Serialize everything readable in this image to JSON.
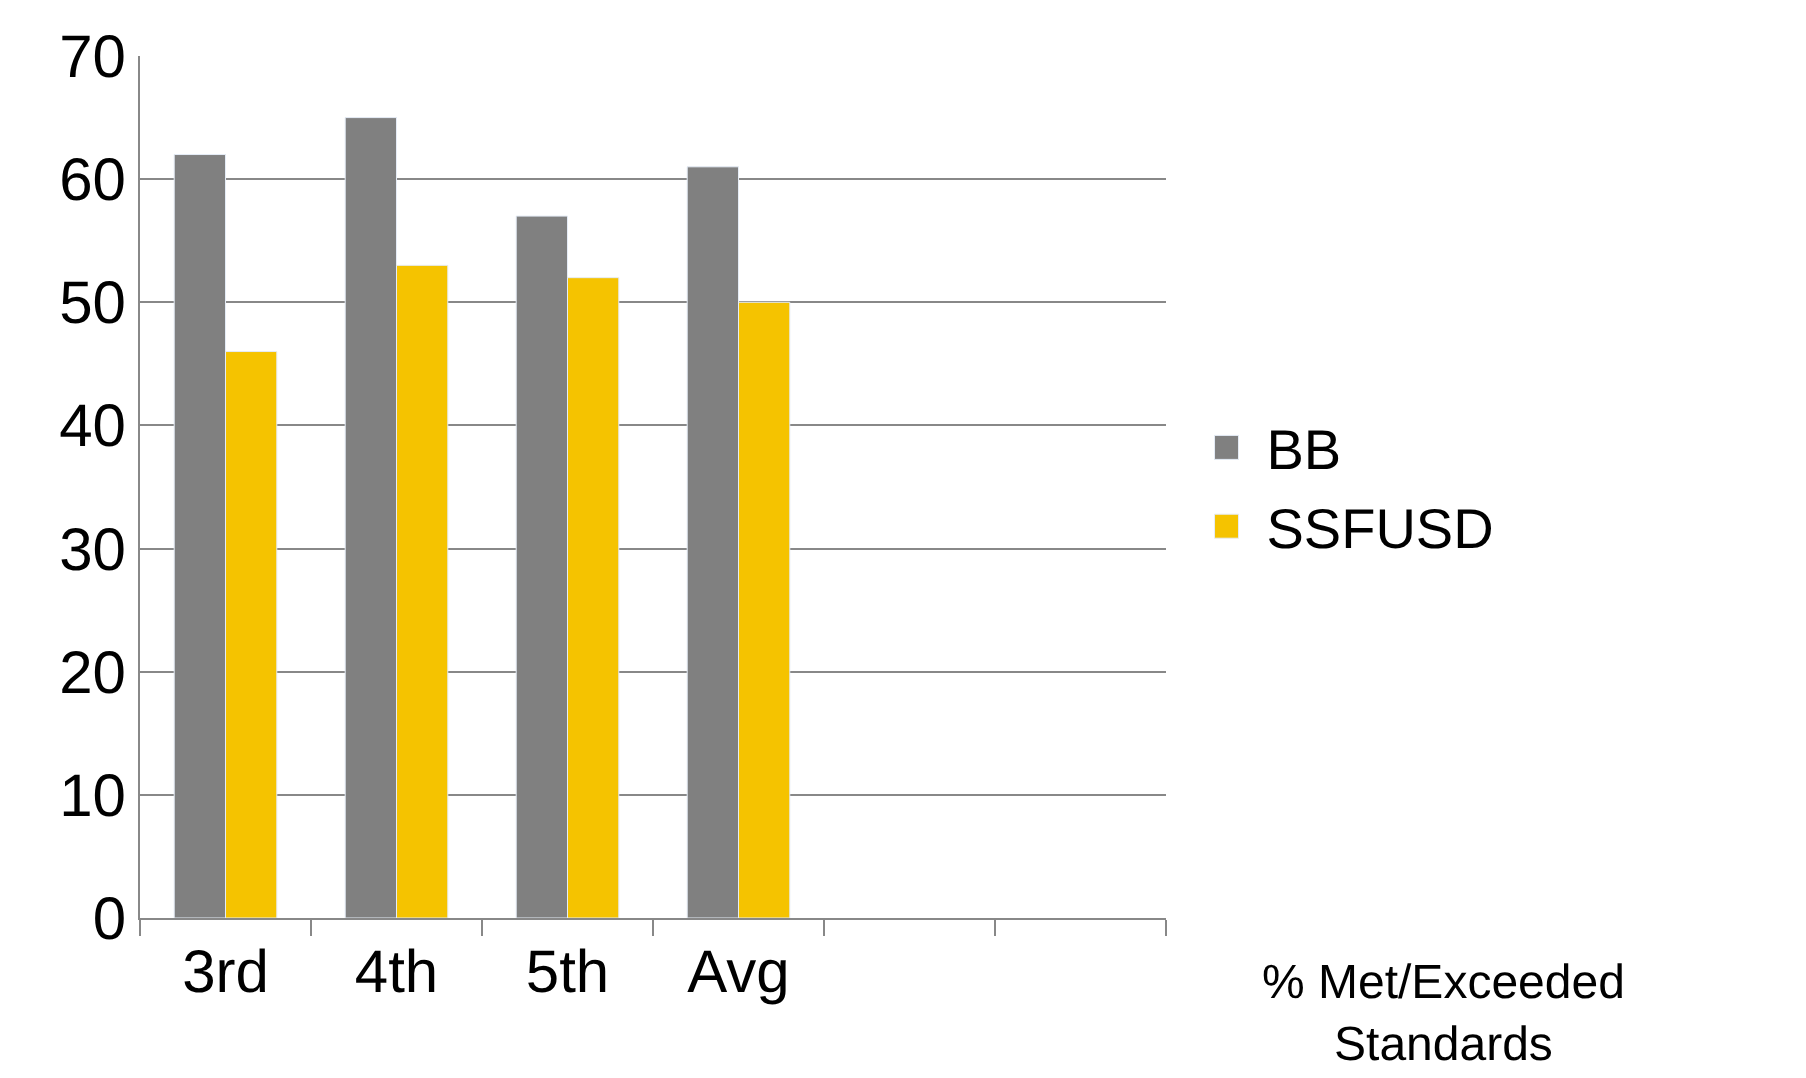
{
  "chart_data": {
    "type": "bar",
    "categories": [
      "3rd",
      "4th",
      "5th",
      "Avg",
      null,
      null
    ],
    "series": [
      {
        "name": "BB",
        "color": "#808080",
        "values": [
          62,
          65,
          57,
          61,
          null,
          null
        ]
      },
      {
        "name": "SSFUSD",
        "color": "#f5c300",
        "values": [
          46,
          53,
          52,
          50,
          null,
          null
        ]
      }
    ],
    "ylim": [
      0,
      70
    ],
    "yticks": [
      0,
      10,
      20,
      30,
      40,
      50,
      60,
      70
    ],
    "grid": "y",
    "legend": "right",
    "annotations": [
      "% Met/Exceeded Standards"
    ]
  }
}
